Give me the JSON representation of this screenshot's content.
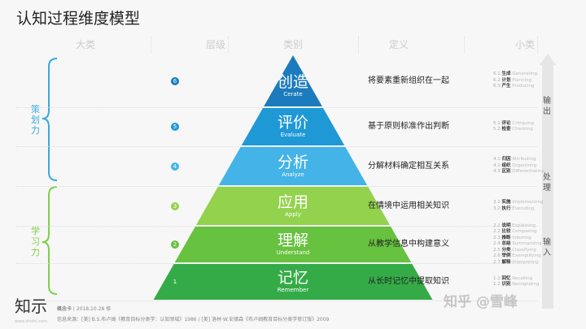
{
  "title": "认知过程维度模型",
  "headers": [
    "大类",
    "层级",
    "类别",
    "定义",
    "小类"
  ],
  "groups": [
    {
      "label": "策划力",
      "color": "#3aa9e0"
    },
    {
      "label": "学习力",
      "color": "#7fcf4a"
    }
  ],
  "levels": [
    {
      "num": "6",
      "cn": "创造",
      "en": "Cerate",
      "color": "#1b7bbd",
      "def": "将要素重新组织在一起",
      "subs": [
        [
          "6.1",
          "生成",
          "Generating"
        ],
        [
          "6.2",
          "计划",
          "Planning"
        ],
        [
          "6.3",
          "产生",
          "Producing"
        ]
      ]
    },
    {
      "num": "5",
      "cn": "评价",
      "en": "Evaluate",
      "color": "#1f98d6",
      "def": "基于原则标准作出判断",
      "subs": [
        [
          "5.1",
          "评论",
          "Critiquing"
        ],
        [
          "5.2",
          "检查",
          "Checking"
        ]
      ]
    },
    {
      "num": "4",
      "cn": "分析",
      "en": "Analyze",
      "color": "#43b3e8",
      "def": "分解材料确定相互关系",
      "subs": [
        [
          "4.1",
          "归因",
          "Attributing"
        ],
        [
          "4.2",
          "组织",
          "Organizing"
        ],
        [
          "4.3",
          "区别",
          "Differentiating"
        ]
      ]
    },
    {
      "num": "3",
      "cn": "应用",
      "en": "Apply",
      "color": "#93d24d",
      "def": "在情境中运用相关知识",
      "subs": [
        [
          "3.1",
          "实施",
          "Implementing"
        ],
        [
          "3.2",
          "执行",
          "Executing"
        ]
      ]
    },
    {
      "num": "2",
      "cn": "理解",
      "en": "Understand",
      "color": "#66c23f",
      "def": "从教学信息中构建意义",
      "subs": [
        [
          "2.1",
          "说明",
          "Explaining"
        ],
        [
          "2.2",
          "比较",
          "Comparing"
        ],
        [
          "2.3",
          "推断",
          "Inferring"
        ],
        [
          "2.4",
          "总结",
          "Summarizing"
        ],
        [
          "2.5",
          "分类",
          "Classifying"
        ],
        [
          "2.6",
          "举例",
          "Exemplifying"
        ],
        [
          "2.7",
          "解释",
          "Interpreting"
        ]
      ]
    },
    {
      "num": "1",
      "cn": "记忆",
      "en": "Remember",
      "color": "#35ab48",
      "def": "从长时记忆中提取知识",
      "subs": [
        [
          "1.1",
          "回忆",
          "Recalling"
        ],
        [
          "1.2",
          "识别",
          "Recognizing"
        ]
      ]
    }
  ],
  "flow": [
    "输出",
    "处理",
    "输入"
  ],
  "footer": {
    "logo": "知示",
    "logo_url": "www.zhishi.com",
    "card": "概念卡",
    "date": "2018.10.28 修",
    "source": "信息来源：[美] B.S.布卢姆《教育目标分类学：认知领域》1986 / [美] 洛林·W.安德森《布卢姆教育目标分类学修订版》2009"
  },
  "watermark": "知乎 @雪峰"
}
